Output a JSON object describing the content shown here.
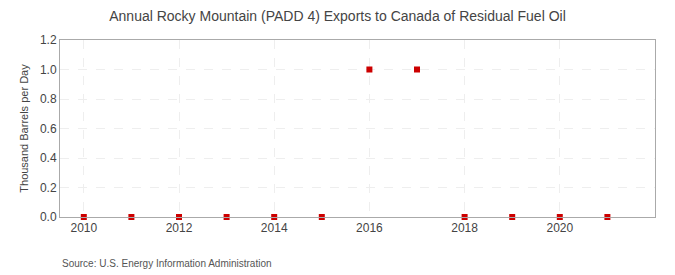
{
  "chart_data": {
    "type": "scatter",
    "title": "Annual Rocky Mountain (PADD 4) Exports to Canada of Residual Fuel Oil",
    "y_label": "Thousand Barrels per Day",
    "annotations": [
      "Source: U.S. Energy Information Administration"
    ],
    "x": [
      2010,
      2011,
      2012,
      2013,
      2014,
      2015,
      2016,
      2017,
      2018,
      2019,
      2020,
      2021
    ],
    "values": [
      0.0,
      0.0,
      0.0,
      0.0,
      0.0,
      0.0,
      1.0,
      1.0,
      0.0,
      0.0,
      0.0,
      0.0
    ],
    "color": "#cc0000",
    "marker": "square",
    "xlim": [
      2009.5,
      2022.0
    ],
    "xticks": [
      2010,
      2012,
      2014,
      2016,
      2018,
      2020
    ],
    "ylim": [
      0.0,
      1.2
    ],
    "yticks": [
      {
        "value": 0.0,
        "label": "0.0"
      },
      0.2,
      0.4,
      0.6,
      0.8,
      {
        "value": 1.0,
        "label": "1.0"
      },
      1.2
    ],
    "grid": true
  }
}
